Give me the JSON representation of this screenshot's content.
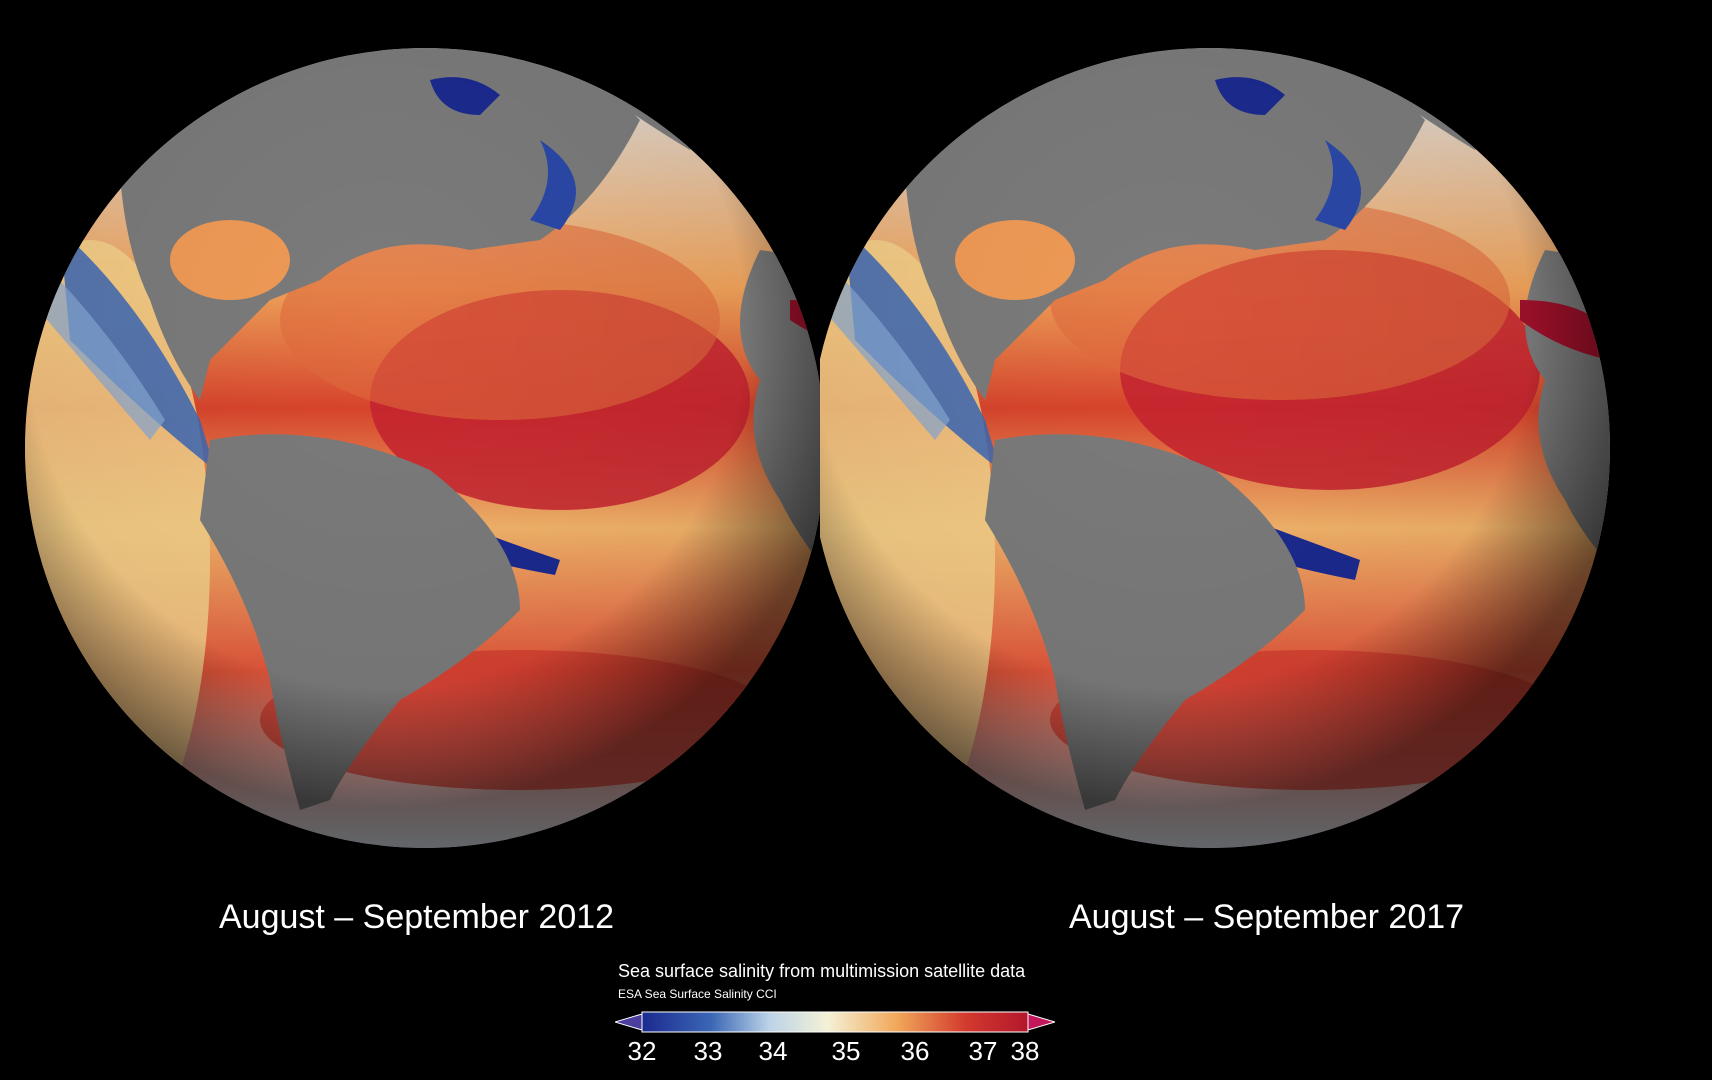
{
  "maps": [
    {
      "caption": "August – September 2012"
    },
    {
      "caption": "August – September 2017"
    }
  ],
  "legend": {
    "title": "Sea surface salinity from multimission satellite data",
    "subtitle": "ESA Sea Surface Salinity CCI",
    "ticks": [
      "32",
      "33",
      "34",
      "35",
      "36",
      "37",
      "38"
    ],
    "colors": {
      "low": "#1b2a8f",
      "mid_low": "#5d8fc8",
      "neutral": "#f4f1d6",
      "mid_high": "#f1a85a",
      "high": "#b2182b",
      "land": "#7a7a7a",
      "background": "#000000"
    }
  }
}
